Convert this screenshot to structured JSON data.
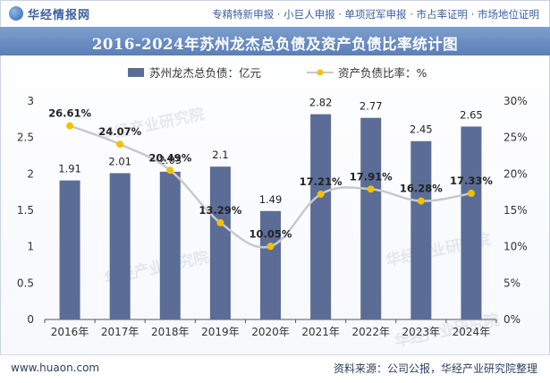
{
  "header": {
    "logo_text": "华经情报网",
    "services": "专精特新申报 · 小巨人申报 · 单项冠军申报 · 市占率证明 · 市场地位证明"
  },
  "watermark": "华经产业研究院",
  "footer": {
    "url": "www.huaon.com",
    "source": "资料来源：公司公报，华经产业研究院整理"
  },
  "colors": {
    "bar": "#5b6d96",
    "line": "#c9c9c9",
    "marker": "#f2c200",
    "title_band": "#6d8fc4"
  },
  "chart_data": {
    "type": "bar",
    "title": "2016-2024年苏州龙杰总负债及资产负债比率统计图",
    "categories": [
      "2016年",
      "2017年",
      "2018年",
      "2019年",
      "2020年",
      "2021年",
      "2022年",
      "2023年",
      "2024年"
    ],
    "series": [
      {
        "name": "苏州龙杰总负债：亿元",
        "type": "bar",
        "axis": "left",
        "values": [
          1.91,
          2.01,
          2.03,
          2.1,
          1.49,
          2.82,
          2.77,
          2.45,
          2.65
        ],
        "labels": [
          "1.91",
          "2.01",
          "2.03",
          "2.1",
          "1.49",
          "2.82",
          "2.77",
          "2.45",
          "2.65"
        ]
      },
      {
        "name": "资产负债比率：%",
        "type": "line",
        "axis": "right",
        "values": [
          26.61,
          24.07,
          20.49,
          13.29,
          10.05,
          17.21,
          17.91,
          16.28,
          17.33
        ],
        "labels": [
          "26.61%",
          "24.07%",
          "20.49%",
          "13.29%",
          "10.05%",
          "17.21%",
          "17.91%",
          "16.28%",
          "17.33%"
        ]
      }
    ],
    "y_left": {
      "min": 0,
      "max": 3,
      "ticks": [
        "0",
        "0.5",
        "1",
        "1.5",
        "2",
        "2.5",
        "3"
      ]
    },
    "y_right": {
      "min": 0,
      "max": 30,
      "ticks": [
        "0%",
        "5%",
        "10%",
        "15%",
        "20%",
        "25%",
        "30%"
      ]
    },
    "legend_position": "top-center",
    "grid": false
  }
}
